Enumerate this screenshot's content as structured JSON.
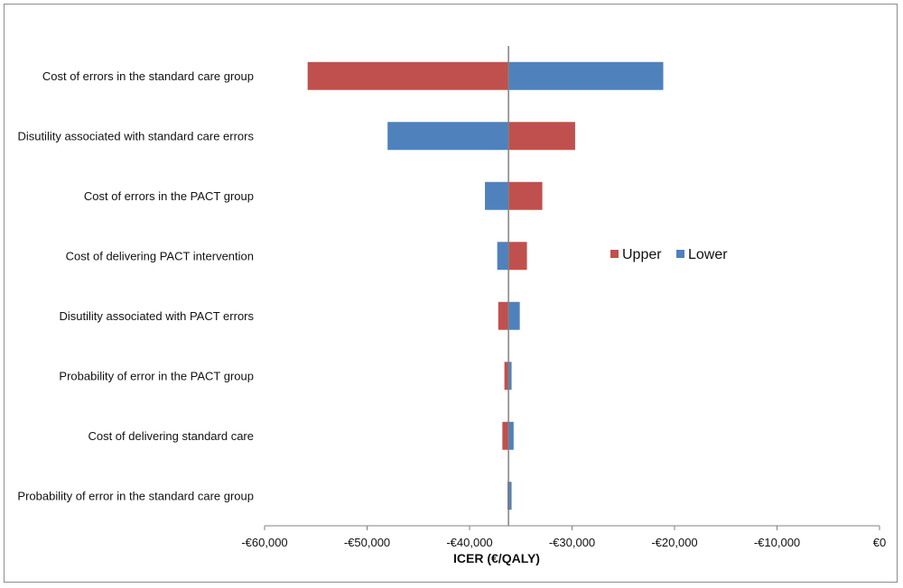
{
  "chart_data": {
    "type": "bar",
    "orientation": "horizontal",
    "variant": "tornado",
    "xlabel": "ICER (€/QALY)",
    "xlim": [
      -60000,
      0
    ],
    "x_ticks": [
      -60000,
      -50000,
      -40000,
      -30000,
      -20000,
      -10000,
      0
    ],
    "x_tick_labels": [
      "-€60,000",
      "-€50,000",
      "-€40,000",
      "-€30,000",
      "-€20,000",
      "-€10,000",
      "€0"
    ],
    "base_value": -36200,
    "legend_position": "right",
    "categories": [
      "Cost of errors in the standard care group",
      "Disutility associated with standard care errors",
      "Cost of errors in the PACT group",
      "Cost of delivering PACT intervention",
      "Disutility associated with PACT errors",
      "Probability of error in the PACT group",
      "Cost of delivering standard care",
      "Probability of error in the standard care group"
    ],
    "series": [
      {
        "name": "Upper",
        "color": "#c0504d",
        "values": [
          -55800,
          -29700,
          -32900,
          -34400,
          -37200,
          -36600,
          -36800,
          -36300
        ]
      },
      {
        "name": "Lower",
        "color": "#4f81bd",
        "values": [
          -21100,
          -48000,
          -38500,
          -37300,
          -35100,
          -35900,
          -35700,
          -35900
        ]
      }
    ]
  }
}
